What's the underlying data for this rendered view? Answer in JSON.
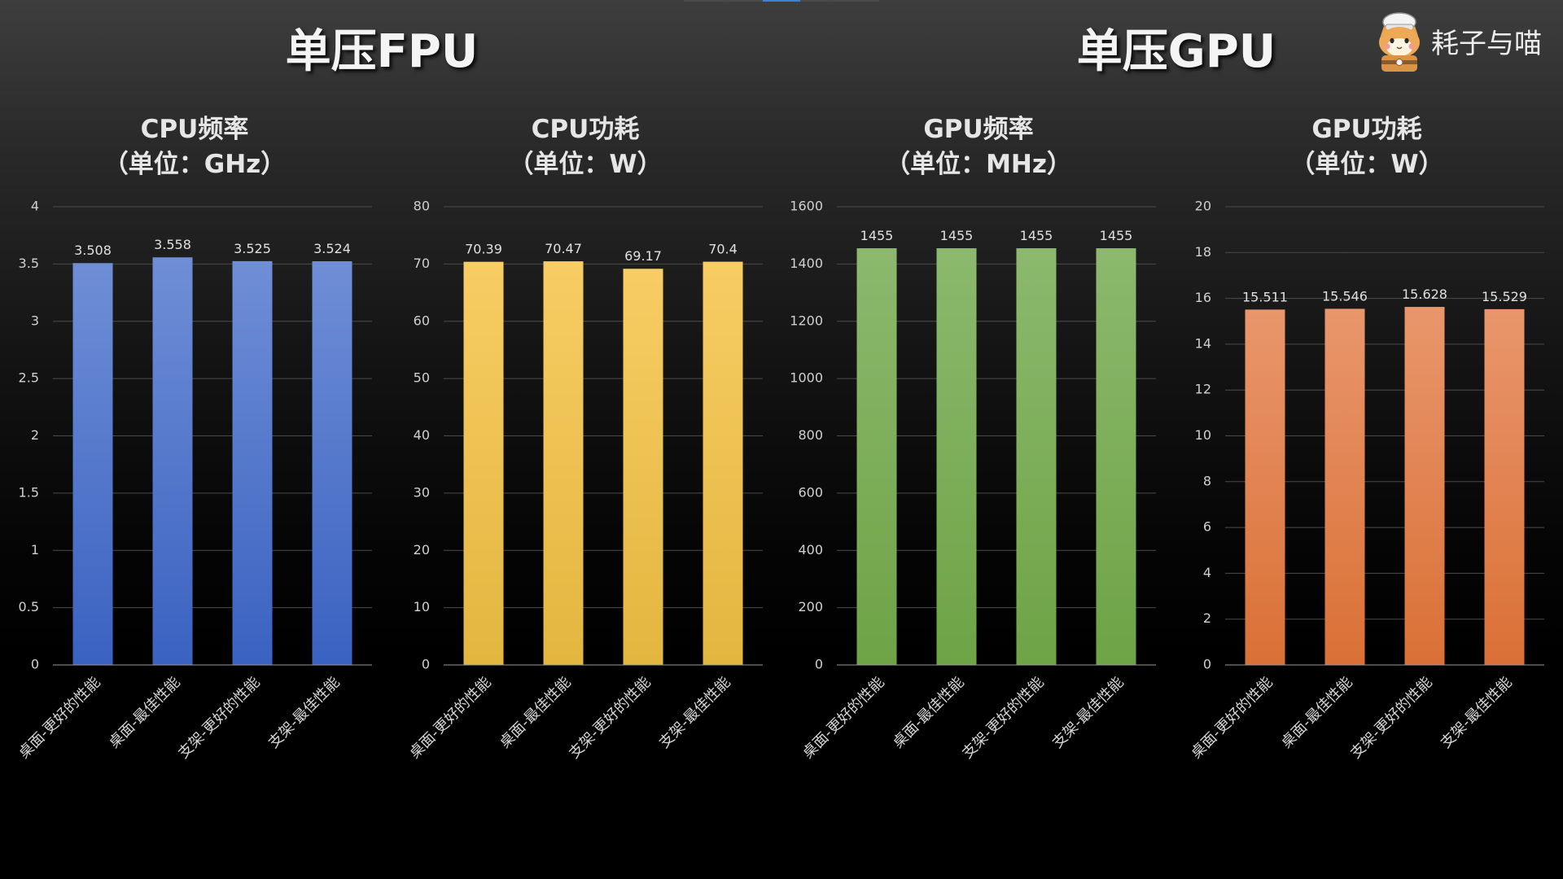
{
  "headings": {
    "fpu": "单压FPU",
    "gpu": "单压GPU"
  },
  "logo": {
    "text": "耗子与喵",
    "icon": "cat-mascot-icon"
  },
  "chart_data": [
    {
      "type": "bar",
      "title": "CPU频率",
      "unit_label": "（单位：GHz）",
      "categories": [
        "桌面-更好的性能",
        "桌面-最佳性能",
        "支架-更好的性能",
        "支架-最佳性能"
      ],
      "values": [
        3.508,
        3.558,
        3.525,
        3.524
      ],
      "ylim": [
        0,
        4
      ],
      "yticks": [
        0,
        0.5,
        1,
        1.5,
        2,
        2.5,
        3,
        3.5,
        4
      ],
      "show_grid": true,
      "gradient": [
        "#6f8ed6",
        "#3a62c1"
      ]
    },
    {
      "type": "bar",
      "title": "CPU功耗",
      "unit_label": "（单位：W）",
      "categories": [
        "桌面-更好的性能",
        "桌面-最佳性能",
        "支架-更好的性能",
        "支架-最佳性能"
      ],
      "values": [
        70.39,
        70.47,
        69.17,
        70.4
      ],
      "ylim": [
        0,
        80
      ],
      "yticks": [
        0,
        10,
        20,
        30,
        40,
        50,
        60,
        70,
        80
      ],
      "show_grid": true,
      "gradient": [
        "#f7cd64",
        "#e3b63f"
      ]
    },
    {
      "type": "bar",
      "title": "GPU频率",
      "unit_label": "（单位：MHz）",
      "categories": [
        "桌面-更好的性能",
        "桌面-最佳性能",
        "支架-更好的性能",
        "支架-最佳性能"
      ],
      "values": [
        1455,
        1455,
        1455,
        1455
      ],
      "ylim": [
        0,
        1600
      ],
      "yticks": [
        0,
        200,
        400,
        600,
        800,
        1000,
        1200,
        1400,
        1600
      ],
      "show_grid": true,
      "gradient": [
        "#8cb96d",
        "#6ea346"
      ]
    },
    {
      "type": "bar",
      "title": "GPU功耗",
      "unit_label": "（单位：W）",
      "categories": [
        "桌面-更好的性能",
        "桌面-最佳性能",
        "支架-更好的性能",
        "支架-最佳性能"
      ],
      "values": [
        15.511,
        15.546,
        15.628,
        15.529
      ],
      "ylim": [
        0,
        20
      ],
      "yticks": [
        0,
        2,
        4,
        6,
        8,
        10,
        12,
        14,
        16,
        18,
        20
      ],
      "show_grid": true,
      "gradient": [
        "#e9966c",
        "#da7036"
      ]
    }
  ]
}
